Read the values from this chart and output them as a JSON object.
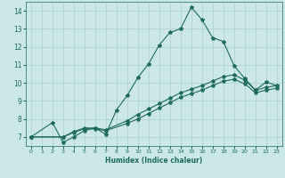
{
  "title": "",
  "xlabel": "Humidex (Indice chaleur)",
  "background_color": "#cce8e6",
  "grid_color": "#aacfcc",
  "line_color": "#1e6b5e",
  "xlim": [
    -0.5,
    23.5
  ],
  "ylim": [
    6.5,
    14.5
  ],
  "xticks": [
    0,
    1,
    2,
    3,
    4,
    5,
    6,
    7,
    8,
    9,
    10,
    11,
    12,
    13,
    14,
    15,
    16,
    17,
    18,
    19,
    20,
    21,
    22,
    23
  ],
  "yticks": [
    7,
    8,
    9,
    10,
    11,
    12,
    13,
    14
  ],
  "line1_x": [
    0,
    2,
    3,
    4,
    5,
    6,
    7,
    8,
    9,
    10,
    11,
    12,
    13,
    14,
    15,
    16,
    17,
    18,
    19,
    20,
    21,
    22,
    23
  ],
  "line1_y": [
    7.0,
    7.8,
    6.7,
    7.0,
    7.35,
    7.5,
    7.15,
    8.5,
    9.3,
    10.3,
    11.05,
    12.1,
    12.8,
    13.0,
    14.2,
    13.5,
    12.5,
    12.3,
    10.95,
    10.25,
    9.6,
    10.05,
    9.85
  ],
  "line2_x": [
    0,
    3,
    4,
    5,
    6,
    7,
    9,
    10,
    11,
    12,
    13,
    14,
    15,
    16,
    17,
    18,
    19,
    20,
    21,
    22,
    23
  ],
  "line2_y": [
    7.0,
    7.0,
    7.3,
    7.5,
    7.5,
    7.4,
    7.9,
    8.25,
    8.55,
    8.85,
    9.15,
    9.45,
    9.65,
    9.85,
    10.1,
    10.35,
    10.45,
    10.15,
    9.6,
    9.75,
    9.85
  ],
  "line3_x": [
    0,
    3,
    4,
    5,
    6,
    7,
    9,
    10,
    11,
    12,
    13,
    14,
    15,
    16,
    17,
    18,
    19,
    20,
    21,
    22,
    23
  ],
  "line3_y": [
    7.0,
    7.0,
    7.25,
    7.45,
    7.45,
    7.35,
    7.75,
    8.0,
    8.3,
    8.6,
    8.9,
    9.2,
    9.4,
    9.6,
    9.85,
    10.1,
    10.2,
    9.95,
    9.45,
    9.6,
    9.7
  ]
}
